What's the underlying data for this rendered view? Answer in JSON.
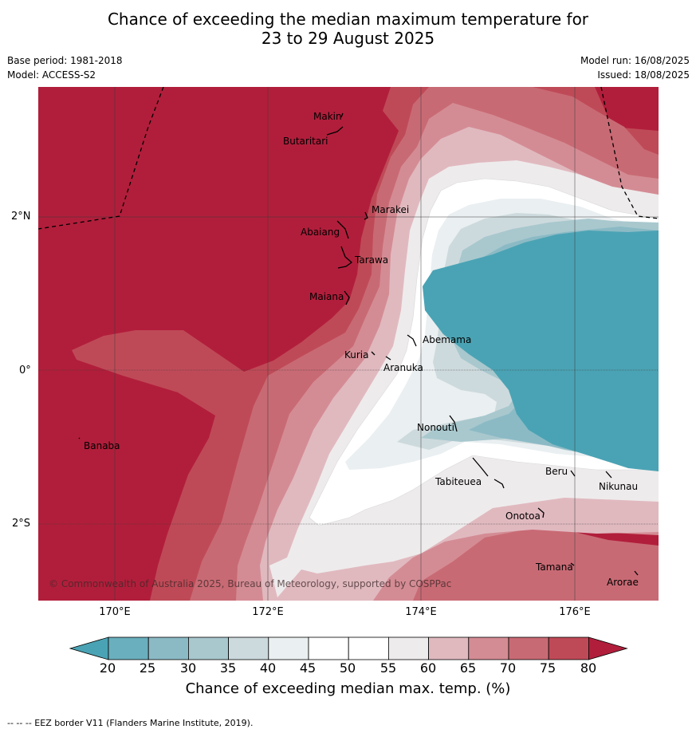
{
  "title": {
    "line1": "Chance of exceeding the median maximum temperature for",
    "line2": "23 to 29 August 2025"
  },
  "meta": {
    "base_period": "Base period: 1981-2018",
    "model": "Model: ACCESS-S2",
    "model_run": "Model run: 16/08/2025",
    "issued": "Issued: 18/08/2025"
  },
  "map": {
    "lat_ticks": [
      "2°N",
      "0°",
      "2°S"
    ],
    "lon_ticks": [
      "170°E",
      "172°E",
      "174°E",
      "176°E"
    ],
    "places": [
      "Makin",
      "Butaritari",
      "Marakei",
      "Abaiang",
      "Tarawa",
      "Maiana",
      "Abemama",
      "Kuria",
      "Aranuka",
      "Banaba",
      "Nonouti",
      "Beru",
      "Tabiteuea",
      "Nikunau",
      "Onotoa",
      "Tamana",
      "Arorae"
    ],
    "copyright": "© Commonwealth of Australia 2025, Bureau of Meteorology, supported by COSPPac"
  },
  "colorbar": {
    "levels": [
      "20",
      "25",
      "30",
      "35",
      "40",
      "45",
      "50",
      "55",
      "60",
      "65",
      "70",
      "75",
      "80"
    ],
    "colors": [
      "#4aa3b4",
      "#6aafbd",
      "#8bbac5",
      "#a8c8ce",
      "#cddadd",
      "#eaeff1",
      "#ffffff",
      "#ffffff",
      "#eeebec",
      "#e0b9bf",
      "#d48c94",
      "#c86a74",
      "#bf4a57",
      "#b11e3b"
    ],
    "title": "Chance of exceeding median max. temp. (%)"
  },
  "footer": "--  --  -- EEZ border V11 (Flanders Marine Institute, 2019)."
}
